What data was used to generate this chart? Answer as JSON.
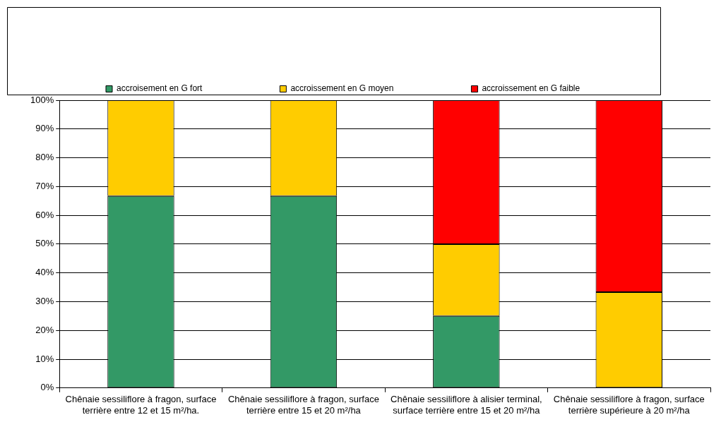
{
  "chart_data": {
    "type": "bar",
    "stacked": true,
    "legend": "top",
    "grid": "y",
    "categories": [
      "Chênaie sessiliflore à fragon, surface terrière entre 12 et 15 m²/ha.",
      "Chênaie sessiliflore à fragon, surface terrière entre 15 et 20 m²/ha",
      "Chênaie sessiliflore à alisier terminal, surface terrière entre 15 et 20 m²/ha",
      "Chênaie sessiliflore à fragon, surface terrière supérieure à 20 m²/ha"
    ],
    "series": [
      {
        "name": "accroisement en G fort",
        "color": "#339966",
        "values": [
          66.7,
          66.7,
          25,
          0
        ]
      },
      {
        "name": "accroissement en G moyen",
        "color": "#ffcc00",
        "values": [
          33.3,
          33.3,
          25,
          33.3
        ]
      },
      {
        "name": "accroissement en G faible",
        "color": "#ff0000",
        "values": [
          0,
          0,
          50,
          66.7
        ]
      }
    ],
    "ylim": [
      0,
      100
    ],
    "yticks": [
      {
        "value": 0,
        "label": "0%"
      },
      {
        "value": 10,
        "label": "10%"
      },
      {
        "value": 20,
        "label": "20%"
      },
      {
        "value": 30,
        "label": "30%"
      },
      {
        "value": 40,
        "label": "40%"
      },
      {
        "value": 50,
        "label": "50%"
      },
      {
        "value": 60,
        "label": "60%"
      },
      {
        "value": 70,
        "label": "70%"
      },
      {
        "value": 80,
        "label": "80%"
      },
      {
        "value": 90,
        "label": "90%"
      },
      {
        "value": 100,
        "label": "100%"
      }
    ]
  }
}
